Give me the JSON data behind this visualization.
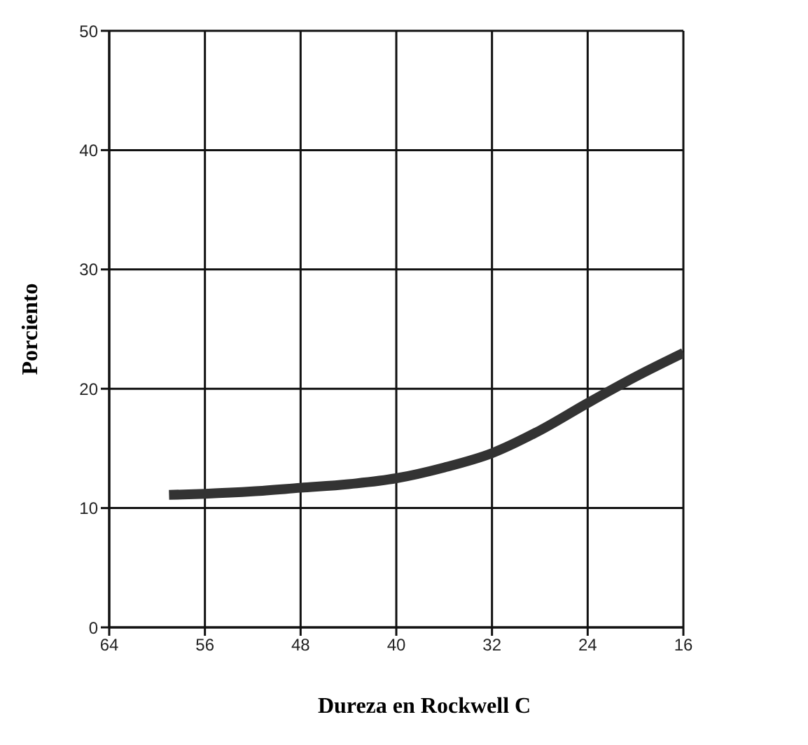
{
  "chart_data": {
    "type": "line",
    "xlabel": "Dureza en Rockwell C",
    "ylabel": "Porciento",
    "x": [
      59,
      56,
      52,
      48,
      44,
      40,
      36,
      32,
      28,
      24,
      20,
      16
    ],
    "series": [
      {
        "color": "#333333",
        "values": [
          11.1,
          11.2,
          11.4,
          11.7,
          12.0,
          12.5,
          13.4,
          14.6,
          16.5,
          18.8,
          21.0,
          23.0
        ]
      }
    ],
    "xlim": [
      64,
      16
    ],
    "xticks": [
      64,
      56,
      48,
      40,
      32,
      24,
      16
    ],
    "ylim": [
      0,
      50
    ],
    "yticks": [
      0,
      10,
      20,
      30,
      40,
      50
    ],
    "grid": true,
    "marker": "none",
    "line_style": "solid",
    "legend": false
  }
}
